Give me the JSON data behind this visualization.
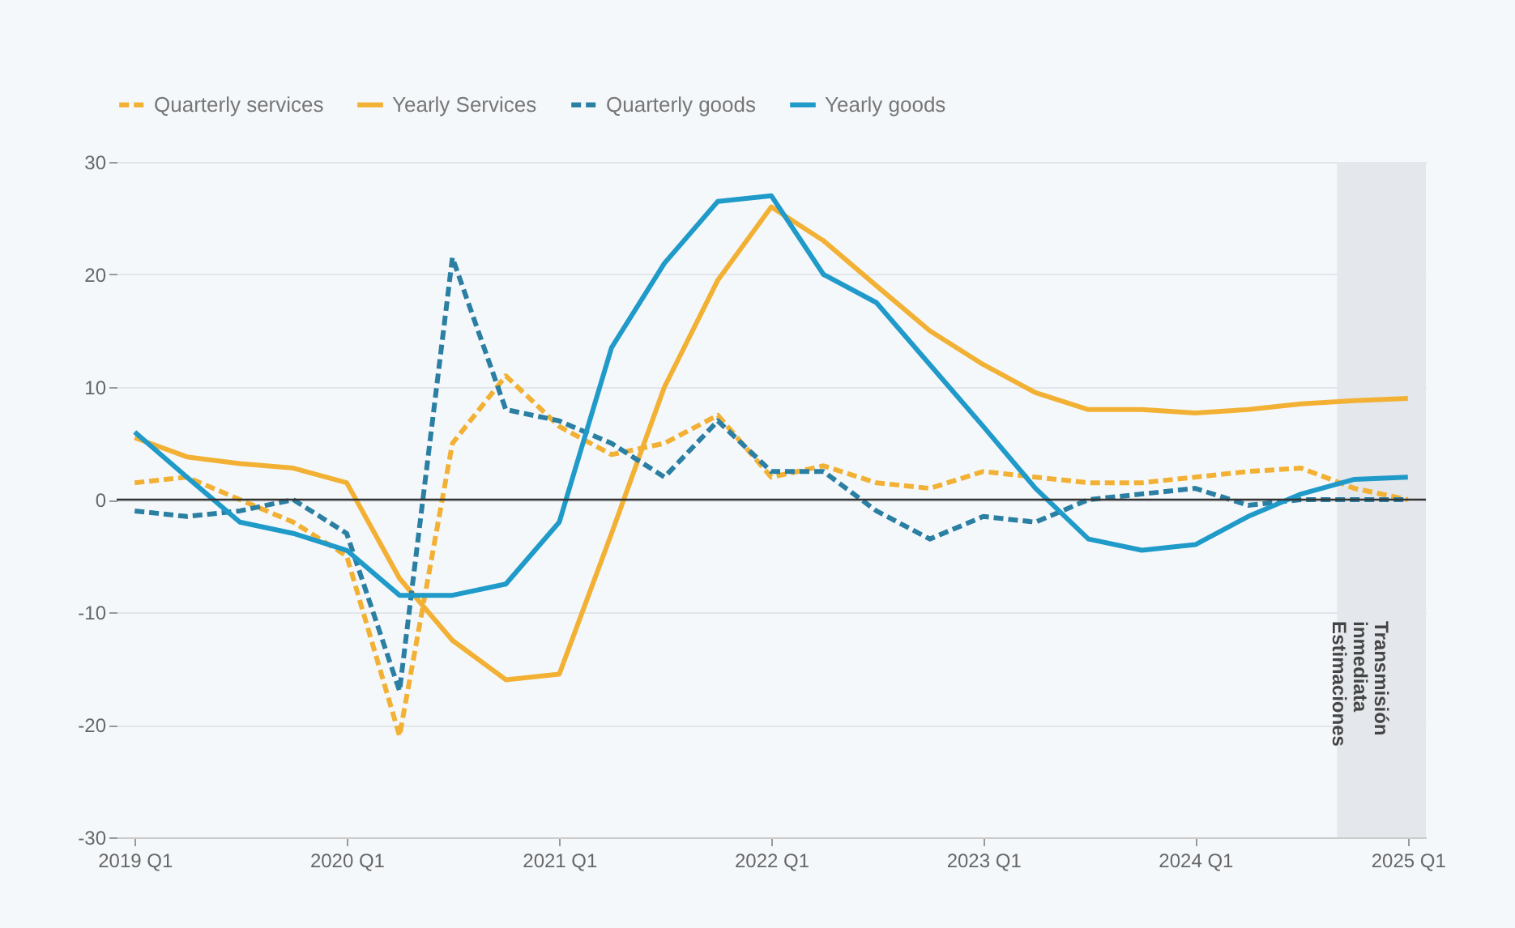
{
  "chart_data": {
    "type": "line",
    "x": [
      "2019-01",
      "2019-04",
      "2019-07",
      "2019-10",
      "2020-01",
      "2020-04",
      "2020-07",
      "2020-10",
      "2021-01",
      "2021-04",
      "2021-07",
      "2021-10",
      "2022-01",
      "2022-04",
      "2022-07",
      "2022-10",
      "2023-01",
      "2023-04",
      "2023-07",
      "2023-10",
      "2024-01",
      "2024-04",
      "2024-07",
      "2024-10",
      "2025-01"
    ],
    "series": [
      {
        "name": "Quarterly services",
        "color": "#f2b134",
        "line_style": "dashed",
        "values": [
          1.5,
          2,
          0,
          -2,
          -5,
          -21,
          5,
          11,
          6.5,
          4,
          5,
          7.5,
          2,
          3,
          1.5,
          1,
          2.5,
          2,
          1.5,
          1.5,
          2,
          2.5,
          2.8,
          1,
          0
        ]
      },
      {
        "name": "Yearly Services",
        "color": "#f2b134",
        "line_style": "solid",
        "values": [
          5.5,
          3.8,
          3.2,
          2.8,
          1.5,
          -7,
          -12.5,
          -16,
          -15.5,
          -3,
          10,
          19.5,
          26,
          23,
          19,
          15,
          12,
          9.5,
          8,
          8,
          7.7,
          8,
          8.5,
          8.8,
          9
        ]
      },
      {
        "name": "Quarterly goods",
        "color": "#2b7fa3",
        "line_style": "dashed",
        "values": [
          -1,
          -1.5,
          -1,
          0,
          -3,
          -17,
          21.5,
          8,
          7,
          5,
          2,
          7,
          2.5,
          2.5,
          -1,
          -3.5,
          -1.5,
          -2,
          0,
          0.5,
          1,
          -0.5,
          0,
          0,
          0
        ]
      },
      {
        "name": "Yearly goods",
        "color": "#1f9ac9",
        "line_style": "solid",
        "values": [
          6,
          2,
          -2,
          -3,
          -4.5,
          -8.5,
          -8.5,
          -7.5,
          -2,
          13.5,
          21,
          26.5,
          27,
          20,
          17.5,
          12,
          6.5,
          1,
          -3.5,
          -4.5,
          -4,
          -1.5,
          0.5,
          1.8,
          2
        ]
      }
    ],
    "xlim": [
      "2018-12",
      "2025-02"
    ],
    "xticks": [
      {
        "value": "2019-01",
        "label": "2019 Q1"
      },
      {
        "value": "2020-01",
        "label": "2020 Q1"
      },
      {
        "value": "2021-01",
        "label": "2021 Q1"
      },
      {
        "value": "2022-01",
        "label": "2022 Q1"
      },
      {
        "value": "2023-01",
        "label": "2023 Q1"
      },
      {
        "value": "2024-01",
        "label": "2024 Q1"
      },
      {
        "value": "2025-01",
        "label": "2025 Q1"
      }
    ],
    "ylim": [
      -30,
      30
    ],
    "yticks": [
      -30,
      -20,
      -10,
      0,
      10,
      20,
      30
    ],
    "grid": "y",
    "legend": "top left",
    "ref_lines": [
      {
        "axis": "y",
        "value": 0,
        "color": "#333333"
      }
    ],
    "bands": [
      {
        "axis": "x",
        "from": "2024-09",
        "to": "2025-02",
        "label": "Transmisión inmediata Estimaciones",
        "color": "#e4e7eb"
      }
    ]
  }
}
